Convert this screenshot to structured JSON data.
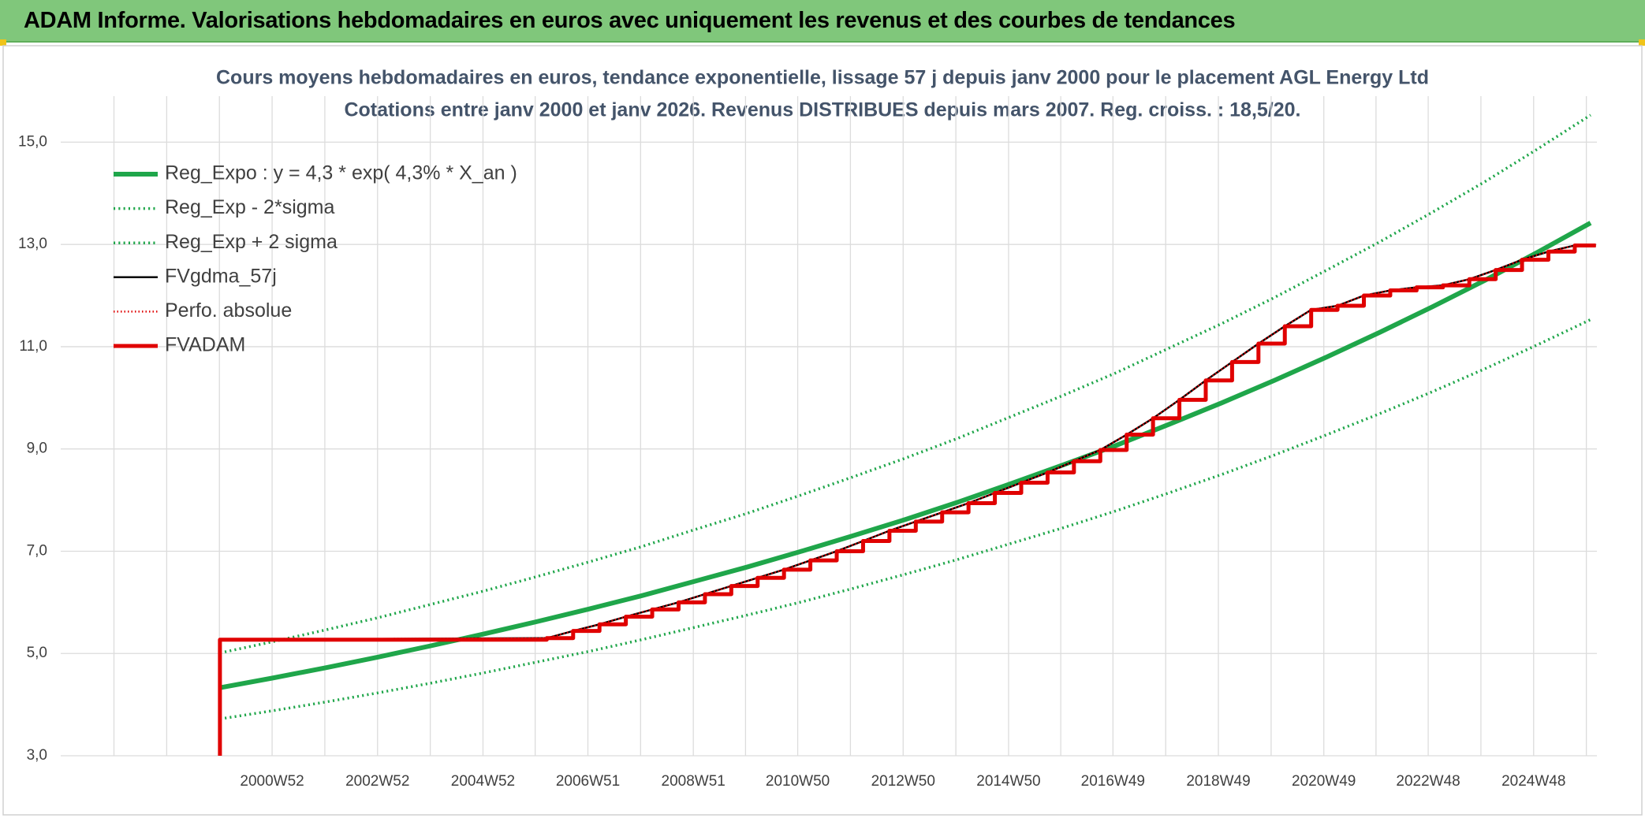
{
  "header": {
    "title": "ADAM Informe. Valorisations hebdomadaires en euros avec uniquement les revenus et des courbes de tendances"
  },
  "chart_data": {
    "type": "line",
    "title": "Cours moyens hebdomadaires en euros, tendance exponentielle, lissage 57 j depuis janv 2000 pour le placement AGL Energy Ltd",
    "subtitle": "Cotations entre janv 2000 et janv 2026. Revenus DISTRIBUES depuis mars 2007. Reg. croiss. : 18,5/20.",
    "xlim": [
      1996.98,
      2026.12
    ],
    "xticks": [
      {
        "value": 2000.99,
        "label": "2000W52"
      },
      {
        "value": 2002.99,
        "label": "2002W52"
      },
      {
        "value": 2004.99,
        "label": "2004W52"
      },
      {
        "value": 2006.98,
        "label": "2006W51"
      },
      {
        "value": 2008.98,
        "label": "2008W51"
      },
      {
        "value": 2010.96,
        "label": "2010W50"
      },
      {
        "value": 2012.96,
        "label": "2012W50"
      },
      {
        "value": 2014.96,
        "label": "2014W50"
      },
      {
        "value": 2016.94,
        "label": "2016W49"
      },
      {
        "value": 2018.94,
        "label": "2018W49"
      },
      {
        "value": 2020.94,
        "label": "2020W49"
      },
      {
        "value": 2022.92,
        "label": "2022W48"
      },
      {
        "value": 2024.92,
        "label": "2024W48"
      }
    ],
    "x_minor_ticks": [
      1997.99,
      1998.99,
      1999.99,
      2001.99,
      2003.99,
      2005.98,
      2007.98,
      2009.97,
      2011.96,
      2013.96,
      2015.95,
      2017.94,
      2019.94,
      2021.93,
      2023.92,
      2025.92
    ],
    "ylim": [
      3,
      15.9
    ],
    "yticks": [
      {
        "value": 3,
        "label": "3,0"
      },
      {
        "value": 5,
        "label": "5,0"
      },
      {
        "value": 7,
        "label": "7,0"
      },
      {
        "value": 9,
        "label": "9,0"
      },
      {
        "value": 11,
        "label": "11,0"
      },
      {
        "value": 13,
        "label": "13,0"
      },
      {
        "value": 15,
        "label": "15,0"
      }
    ],
    "grid": true,
    "legend": "upper left",
    "series": [
      {
        "name": "Reg_Expo : y = 4,3 * exp( 4,3% *  X_an )",
        "color": "#1fa64a",
        "line_style": "solid",
        "line_width": 6,
        "x": [
          2000,
          2001,
          2002,
          2003,
          2004,
          2005,
          2006,
          2007,
          2008,
          2009,
          2010,
          2011,
          2012,
          2013,
          2014,
          2015,
          2016,
          2017,
          2018,
          2019,
          2020,
          2021,
          2022,
          2023,
          2024,
          2025,
          2026
        ],
        "values": [
          4.33,
          4.52,
          4.72,
          4.93,
          5.15,
          5.38,
          5.62,
          5.87,
          6.13,
          6.41,
          6.69,
          6.99,
          7.3,
          7.62,
          7.96,
          8.32,
          8.69,
          9.07,
          9.48,
          9.9,
          10.34,
          10.8,
          11.28,
          11.78,
          12.3,
          12.85,
          13.42
        ]
      },
      {
        "name": "Reg_Exp - 2*sigma",
        "color": "#1fa64a",
        "line_style": "dotted",
        "line_width": 3.5,
        "x": [
          2000,
          2001,
          2002,
          2003,
          2004,
          2005,
          2006,
          2007,
          2008,
          2009,
          2010,
          2011,
          2012,
          2013,
          2014,
          2015,
          2016,
          2017,
          2018,
          2019,
          2020,
          2021,
          2022,
          2023,
          2024,
          2025,
          2026
        ],
        "values": [
          3.72,
          3.88,
          4.05,
          4.23,
          4.42,
          4.62,
          4.83,
          5.04,
          5.27,
          5.51,
          5.75,
          6.0,
          6.27,
          6.55,
          6.84,
          7.15,
          7.46,
          7.79,
          8.14,
          8.5,
          8.88,
          9.28,
          9.69,
          10.12,
          10.57,
          11.04,
          11.53
        ]
      },
      {
        "name": "Reg_Exp + 2 sigma",
        "color": "#1fa64a",
        "line_style": "dotted",
        "line_width": 3.5,
        "x": [
          2000,
          2001,
          2002,
          2003,
          2004,
          2005,
          2006,
          2007,
          2008,
          2009,
          2010,
          2011,
          2012,
          2013,
          2014,
          2015,
          2016,
          2017,
          2018,
          2019,
          2020,
          2021,
          2022,
          2023,
          2024,
          2025,
          2026
        ],
        "values": [
          5.01,
          5.23,
          5.46,
          5.7,
          5.96,
          6.22,
          6.5,
          6.79,
          7.09,
          7.42,
          7.74,
          8.09,
          8.45,
          8.82,
          9.21,
          9.63,
          10.05,
          10.49,
          10.97,
          11.45,
          11.96,
          12.5,
          13.05,
          13.63,
          14.23,
          14.87,
          15.53
        ]
      },
      {
        "name": "FVgdma_57j",
        "color": "#000000",
        "line_style": "solid",
        "line_width": 2.5,
        "x": [
          2000,
          2006.2,
          2006.7,
          2007.2,
          2007.7,
          2008.2,
          2008.7,
          2009.2,
          2009.7,
          2010.2,
          2010.7,
          2011.2,
          2011.7,
          2012.2,
          2012.7,
          2013.2,
          2013.7,
          2014.2,
          2014.7,
          2015.2,
          2015.7,
          2016.2,
          2016.7,
          2017.2,
          2017.7,
          2018.2,
          2018.7,
          2019.2,
          2019.7,
          2020.2,
          2020.7,
          2021.2,
          2021.7,
          2022.2,
          2022.7,
          2023.2,
          2023.7,
          2024.2,
          2024.7,
          2025.2,
          2025.7,
          2026.1
        ],
        "values": [
          5.27,
          5.3,
          5.44,
          5.57,
          5.72,
          5.86,
          6.0,
          6.16,
          6.32,
          6.48,
          6.64,
          6.82,
          7.0,
          7.2,
          7.4,
          7.58,
          7.76,
          7.94,
          8.14,
          8.34,
          8.54,
          8.76,
          8.98,
          9.28,
          9.6,
          9.96,
          10.34,
          10.7,
          11.06,
          11.4,
          11.72,
          11.8,
          12.0,
          12.1,
          12.16,
          12.2,
          12.32,
          12.5,
          12.7,
          12.86,
          12.98,
          12.98
        ]
      },
      {
        "name": "Perfo. absolue",
        "color": "#e00000",
        "line_style": "dotted",
        "line_width": 2.5,
        "x": [
          2000,
          2006.2,
          2006.7,
          2007.2,
          2007.7,
          2008.2,
          2008.7,
          2009.2,
          2009.7,
          2010.2,
          2010.7,
          2011.2,
          2011.7,
          2012.2,
          2012.7,
          2013.2,
          2013.7,
          2014.2,
          2014.7,
          2015.2,
          2015.7,
          2016.2,
          2016.7,
          2017.2,
          2017.7,
          2018.2,
          2018.7,
          2019.2,
          2019.7,
          2020.2,
          2020.7,
          2021.2,
          2021.7,
          2022.2,
          2022.7,
          2023.2,
          2023.7,
          2024.2,
          2024.7,
          2025.2,
          2025.7,
          2026.1
        ],
        "values": [
          5.27,
          5.3,
          5.44,
          5.57,
          5.72,
          5.86,
          6.0,
          6.16,
          6.32,
          6.48,
          6.64,
          6.82,
          7.0,
          7.2,
          7.4,
          7.58,
          7.76,
          7.94,
          8.14,
          8.34,
          8.54,
          8.76,
          8.98,
          9.28,
          9.6,
          9.96,
          10.34,
          10.7,
          11.06,
          11.4,
          11.72,
          11.8,
          12.0,
          12.1,
          12.16,
          12.2,
          12.32,
          12.5,
          12.7,
          12.86,
          12.98,
          12.98
        ]
      },
      {
        "name": "FVADAM",
        "color": "#e00000",
        "line_style": "solid",
        "line_width": 5,
        "x": [
          2000,
          2000,
          2006.2,
          2006.2,
          2006.7,
          2006.7,
          2007.2,
          2007.2,
          2007.7,
          2007.7,
          2008.2,
          2008.2,
          2008.7,
          2008.7,
          2009.2,
          2009.2,
          2009.7,
          2009.7,
          2010.2,
          2010.2,
          2010.7,
          2010.7,
          2011.2,
          2011.2,
          2011.7,
          2011.7,
          2012.2,
          2012.2,
          2012.7,
          2012.7,
          2013.2,
          2013.2,
          2013.7,
          2013.7,
          2014.2,
          2014.2,
          2014.7,
          2014.7,
          2015.2,
          2015.2,
          2015.7,
          2015.7,
          2016.2,
          2016.2,
          2016.7,
          2016.7,
          2017.2,
          2017.2,
          2017.7,
          2017.7,
          2018.2,
          2018.2,
          2018.7,
          2018.7,
          2019.2,
          2019.2,
          2019.7,
          2019.7,
          2020.2,
          2020.2,
          2020.7,
          2020.7,
          2021.2,
          2021.2,
          2021.7,
          2021.7,
          2022.2,
          2022.2,
          2022.7,
          2022.7,
          2023.2,
          2023.2,
          2023.7,
          2023.7,
          2024.2,
          2024.2,
          2024.7,
          2024.7,
          2025.2,
          2025.2,
          2025.7,
          2025.7,
          2026.1
        ],
        "values": [
          3.0,
          5.27,
          5.27,
          5.3,
          5.3,
          5.44,
          5.44,
          5.57,
          5.57,
          5.72,
          5.72,
          5.86,
          5.86,
          6.0,
          6.0,
          6.16,
          6.16,
          6.32,
          6.32,
          6.48,
          6.48,
          6.64,
          6.64,
          6.82,
          6.82,
          7.0,
          7.0,
          7.2,
          7.2,
          7.4,
          7.4,
          7.58,
          7.58,
          7.76,
          7.76,
          7.94,
          7.94,
          8.14,
          8.14,
          8.34,
          8.34,
          8.54,
          8.54,
          8.76,
          8.76,
          8.98,
          8.98,
          9.28,
          9.28,
          9.6,
          9.6,
          9.96,
          9.96,
          10.34,
          10.34,
          10.7,
          10.7,
          11.06,
          11.06,
          11.4,
          11.4,
          11.72,
          11.72,
          11.8,
          11.8,
          12.0,
          12.0,
          12.1,
          12.1,
          12.16,
          12.16,
          12.2,
          12.2,
          12.32,
          12.32,
          12.5,
          12.5,
          12.7,
          12.7,
          12.86,
          12.86,
          12.98,
          12.98
        ]
      }
    ]
  }
}
